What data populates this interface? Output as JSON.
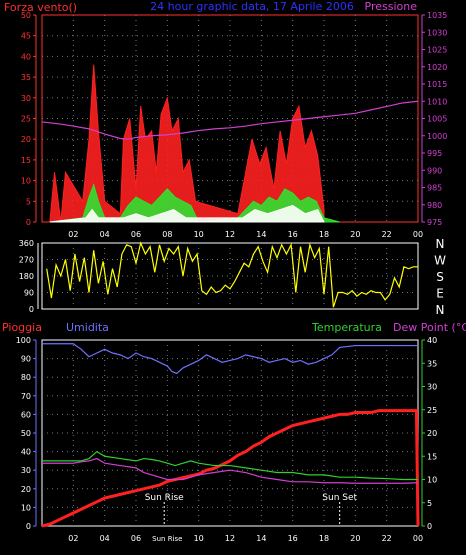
{
  "chart_data": [
    {
      "type": "line",
      "title": "24 hour graphic data, 17 Aprile 2006",
      "left_label": "Forza vento()",
      "right_label": "Pressione",
      "x_ticks": [
        "02",
        "04",
        "06",
        "08",
        "10",
        "12",
        "14",
        "16",
        "18",
        "20",
        "22",
        "00"
      ],
      "y_ticks": [
        "0",
        "5",
        "10",
        "15",
        "20",
        "25",
        "30",
        "35",
        "40",
        "45",
        "50"
      ],
      "ylim": [
        0,
        50
      ],
      "y2_ticks": [
        "975",
        "980",
        "985",
        "990",
        "995",
        "1000",
        "1005",
        "1010",
        "1015",
        "1020",
        "1025",
        "1030",
        "1035"
      ],
      "y2lim": [
        975,
        1035
      ],
      "grid": true,
      "colors": {
        "gust": "#ff2020",
        "wind": "#30e030",
        "wind_min": "#ffffff",
        "pressure": "#d040d0",
        "left_axis": "#ff3030",
        "right_axis": "#d040d0",
        "title": "#3030ff"
      },
      "series": [
        {
          "key": "gust",
          "x": [
            0.5,
            0.8,
            1.2,
            1.5,
            2.6,
            3.0,
            3.3,
            3.6,
            4.0,
            5.0,
            5.2,
            5.6,
            6.0,
            6.3,
            6.6,
            7.0,
            7.3,
            7.6,
            8.0,
            8.3,
            8.7,
            9.0,
            9.4,
            9.8,
            12.5,
            13.0,
            13.4,
            13.9,
            14.3,
            14.8,
            15.2,
            15.6,
            16.0,
            16.4,
            16.8,
            17.2,
            17.6,
            18.0
          ],
          "y": [
            0,
            12,
            0,
            12,
            5,
            20,
            38,
            22,
            5,
            2,
            20,
            25,
            8,
            28,
            20,
            22,
            12,
            26,
            30,
            22,
            25,
            12,
            15,
            5,
            2,
            12,
            20,
            14,
            18,
            8,
            22,
            14,
            25,
            28,
            18,
            22,
            16,
            3
          ]
        },
        {
          "key": "wind",
          "x": [
            0.5,
            2.6,
            3.0,
            3.3,
            3.6,
            4.0,
            5.0,
            5.5,
            6.0,
            6.5,
            7.0,
            7.5,
            8.0,
            8.5,
            9.0,
            9.5,
            10.0,
            12.5,
            13.0,
            13.5,
            14.0,
            14.5,
            15.0,
            15.5,
            16.0,
            16.5,
            17.0,
            17.5,
            18.0,
            19.0
          ],
          "y": [
            0,
            1,
            6,
            9,
            5,
            1,
            1,
            4,
            6,
            5,
            4,
            6,
            8,
            6,
            5,
            4,
            0,
            1,
            3,
            5,
            4,
            6,
            5,
            8,
            7,
            5,
            6,
            5,
            1,
            0
          ]
        },
        {
          "key": "wind_min",
          "x": [
            0.5,
            2.8,
            3.2,
            3.6,
            5.2,
            6.0,
            6.8,
            7.6,
            8.4,
            9.2,
            12.8,
            13.6,
            14.4,
            15.2,
            16.0,
            16.8,
            17.6,
            18.0
          ],
          "y": [
            0,
            1,
            3,
            1,
            1,
            2,
            1,
            2,
            3,
            1,
            1,
            3,
            2,
            3,
            4,
            2,
            3,
            0
          ]
        },
        {
          "key": "pressure",
          "axis": "right",
          "x": [
            0,
            1,
            2,
            3,
            4,
            5,
            5.5,
            6,
            7,
            8,
            9,
            10,
            11,
            12,
            13,
            14,
            15,
            16,
            17,
            18,
            19,
            20,
            21,
            22,
            23,
            24
          ],
          "y": [
            1004,
            1003.5,
            1002.8,
            1002,
            1000.5,
            999.2,
            999,
            999.5,
            1000,
            1000.3,
            1000.8,
            1001.5,
            1002,
            1002.3,
            1002.8,
            1003.5,
            1004,
            1004.5,
            1005,
            1005.5,
            1006,
            1006.5,
            1007.5,
            1008.5,
            1009.5,
            1010
          ]
        }
      ]
    },
    {
      "type": "line",
      "title": "",
      "y_ticks": [
        "360",
        "270",
        "180",
        "90",
        "0"
      ],
      "ylim": [
        0,
        360
      ],
      "compass": [
        "N",
        "W",
        "S",
        "E",
        "N"
      ],
      "grid": true,
      "colors": {
        "direction": "#ffff00",
        "axis": "#ffffff"
      },
      "series": [
        {
          "key": "direction",
          "x": [
            0.3,
            0.6,
            0.9,
            1.2,
            1.5,
            1.8,
            2.1,
            2.4,
            2.7,
            3.0,
            3.3,
            3.6,
            3.9,
            4.2,
            4.5,
            4.8,
            5.1,
            5.4,
            5.7,
            6.0,
            6.3,
            6.6,
            6.9,
            7.2,
            7.5,
            7.8,
            8.1,
            8.4,
            8.7,
            9.0,
            9.3,
            9.6,
            9.9,
            10.2,
            10.5,
            10.8,
            11.1,
            11.4,
            11.7,
            12.0,
            12.3,
            12.6,
            12.9,
            13.2,
            13.5,
            13.8,
            14.1,
            14.4,
            14.7,
            15.0,
            15.3,
            15.6,
            15.9,
            16.2,
            16.5,
            16.8,
            17.1,
            17.4,
            17.7,
            18.0,
            18.3,
            18.6,
            18.9,
            19.2,
            19.5,
            19.8,
            20.1,
            20.4,
            20.7,
            21.0,
            21.3,
            21.6,
            21.9,
            22.2,
            22.5,
            22.8,
            23.1,
            23.4,
            23.7,
            24.0
          ],
          "y": [
            220,
            60,
            240,
            180,
            270,
            100,
            300,
            150,
            280,
            90,
            320,
            140,
            260,
            80,
            220,
            120,
            300,
            350,
            340,
            250,
            360,
            300,
            340,
            200,
            350,
            260,
            330,
            300,
            340,
            180,
            330,
            260,
            300,
            100,
            80,
            120,
            90,
            100,
            130,
            110,
            150,
            200,
            250,
            230,
            300,
            340,
            260,
            200,
            340,
            280,
            350,
            300,
            350,
            90,
            340,
            200,
            350,
            280,
            330,
            80,
            340,
            10,
            90,
            90,
            80,
            100,
            70,
            90,
            80,
            100,
            90,
            90,
            50,
            80,
            170,
            120,
            230,
            220,
            230,
            230
          ]
        }
      ]
    },
    {
      "type": "line",
      "title": "",
      "labels": {
        "rain": "Pioggia",
        "humidity": "Umidita",
        "temperature": "Temperatura",
        "dew": "Dew Point (°C)"
      },
      "x_ticks": [
        "02",
        "04",
        "06",
        "08",
        "10",
        "12",
        "14",
        "16",
        "18",
        "20",
        "22",
        "00"
      ],
      "y_ticks": [
        "0",
        "10",
        "20",
        "30",
        "40",
        "50",
        "60",
        "70",
        "80",
        "90",
        "100"
      ],
      "ylim": [
        0,
        100
      ],
      "y2_ticks": [
        "0",
        "5",
        "10",
        "15",
        "20",
        "25",
        "30",
        "35",
        "40"
      ],
      "y2lim": [
        0,
        40
      ],
      "annotations": [
        {
          "x": 7.8,
          "text": "Sun Rise"
        },
        {
          "x": 19.0,
          "text": "Sun Set"
        }
      ],
      "x_extra_label": {
        "x": 8.0,
        "text": "Sun Rise"
      },
      "grid": true,
      "colors": {
        "rain": "#ff2020",
        "humidity": "#7070ff",
        "temperature": "#30d030",
        "dew": "#d040d0",
        "left_axis": "#7070ff",
        "right_axis": "#30d030"
      },
      "series": [
        {
          "key": "rain",
          "axis": "left",
          "x": [
            0,
            0.5,
            1,
            1.5,
            2,
            2.5,
            3,
            3.5,
            4,
            4.5,
            5,
            5.5,
            6,
            6.5,
            7,
            7.5,
            8,
            8.5,
            9,
            9.5,
            10,
            10.5,
            11,
            11.5,
            12,
            12.5,
            13,
            13.5,
            14,
            14.5,
            15,
            15.5,
            16,
            16.5,
            17,
            17.5,
            18,
            18.5,
            19,
            19.5,
            20,
            20.5,
            21,
            21.5,
            22,
            22.5,
            23,
            23.5,
            23.9,
            24.0
          ],
          "y": [
            0,
            1,
            3,
            5,
            7,
            9,
            11,
            13,
            15,
            16,
            17,
            18,
            19,
            20,
            21,
            22,
            24,
            25,
            26,
            27,
            28,
            30,
            31,
            33,
            35,
            38,
            40,
            43,
            45,
            48,
            50,
            52,
            54,
            55,
            56,
            57,
            58,
            59,
            60,
            60,
            61,
            61,
            61,
            62,
            62,
            62,
            62,
            62,
            62,
            0
          ]
        },
        {
          "key": "humidity",
          "axis": "left",
          "x": [
            0,
            1,
            2,
            2.5,
            3,
            3.5,
            4,
            4.5,
            5,
            5.5,
            6,
            6.5,
            7,
            7.5,
            8,
            8.3,
            8.6,
            9,
            9.5,
            10,
            10.5,
            11,
            11.5,
            12,
            12.5,
            13,
            13.5,
            14,
            14.5,
            15,
            15.5,
            16,
            16.5,
            17,
            17.5,
            18,
            18.5,
            19,
            20,
            21,
            22,
            23,
            24
          ],
          "y": [
            98,
            98,
            98,
            95,
            91,
            93,
            95,
            93,
            92,
            90,
            93,
            91,
            90,
            88,
            86,
            83,
            82,
            85,
            87,
            89,
            92,
            90,
            88,
            89,
            90,
            92,
            91,
            90,
            88,
            89,
            90,
            88,
            89,
            87,
            88,
            90,
            92,
            96,
            97,
            97,
            97,
            97,
            97
          ]
        },
        {
          "key": "temperature",
          "axis": "right",
          "x": [
            0,
            1,
            2,
            2.5,
            3,
            3.5,
            4,
            5,
            6,
            6.5,
            7,
            7.5,
            8,
            8.5,
            9,
            9.5,
            10,
            11,
            12,
            13,
            14,
            15,
            16,
            17,
            18,
            19,
            20,
            21,
            22,
            23,
            24
          ],
          "y": [
            14,
            14,
            14,
            14,
            14.5,
            16,
            15,
            14.5,
            14,
            14.5,
            14.3,
            14,
            13.5,
            13,
            13.5,
            14,
            13.5,
            13,
            13,
            12.5,
            12,
            11.5,
            11.5,
            11,
            11,
            10.5,
            10.5,
            10.3,
            10.2,
            10,
            10
          ]
        },
        {
          "key": "dew",
          "axis": "right",
          "x": [
            0,
            1,
            2,
            2.5,
            3,
            3.5,
            4,
            5,
            6,
            6.5,
            7,
            7.5,
            8,
            8.5,
            9,
            9.5,
            10,
            11,
            12,
            13,
            14,
            15,
            16,
            17,
            18,
            19,
            20,
            21,
            22,
            23,
            24
          ],
          "y": [
            13.5,
            13.5,
            13.5,
            13.8,
            14,
            14.5,
            13.5,
            13,
            12.5,
            11.5,
            11,
            10.5,
            10,
            10,
            10,
            10.5,
            11,
            11.5,
            12,
            11.5,
            10.5,
            10,
            9.5,
            9.5,
            9.3,
            9.3,
            9.2,
            9.2,
            9.2,
            9.2,
            9.3
          ]
        }
      ]
    }
  ]
}
